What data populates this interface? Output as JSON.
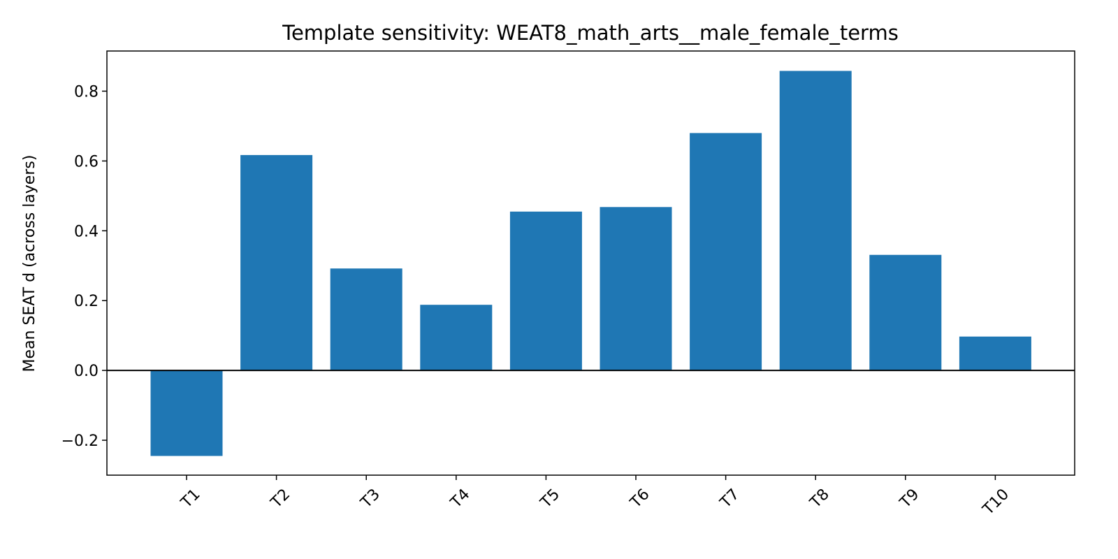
{
  "chart_data": {
    "type": "bar",
    "title": "Template sensitivity: WEAT8_math_arts__male_female_terms",
    "xlabel": "",
    "ylabel": "Mean SEAT d (across layers)",
    "categories": [
      "T1",
      "T2",
      "T3",
      "T4",
      "T5",
      "T6",
      "T7",
      "T8",
      "T9",
      "T10"
    ],
    "values": [
      -0.245,
      0.617,
      0.292,
      0.188,
      0.455,
      0.468,
      0.68,
      0.858,
      0.331,
      0.097
    ],
    "ylim": [
      -0.3,
      0.915
    ],
    "yticks": [
      -0.2,
      0.0,
      0.2,
      0.4,
      0.6,
      0.8
    ],
    "ytick_labels": [
      "−0.2",
      "0.0",
      "0.2",
      "0.4",
      "0.6",
      "0.8"
    ],
    "bar_color": "#1f77b4",
    "zero_line": true,
    "grid": false,
    "legend": "none"
  }
}
